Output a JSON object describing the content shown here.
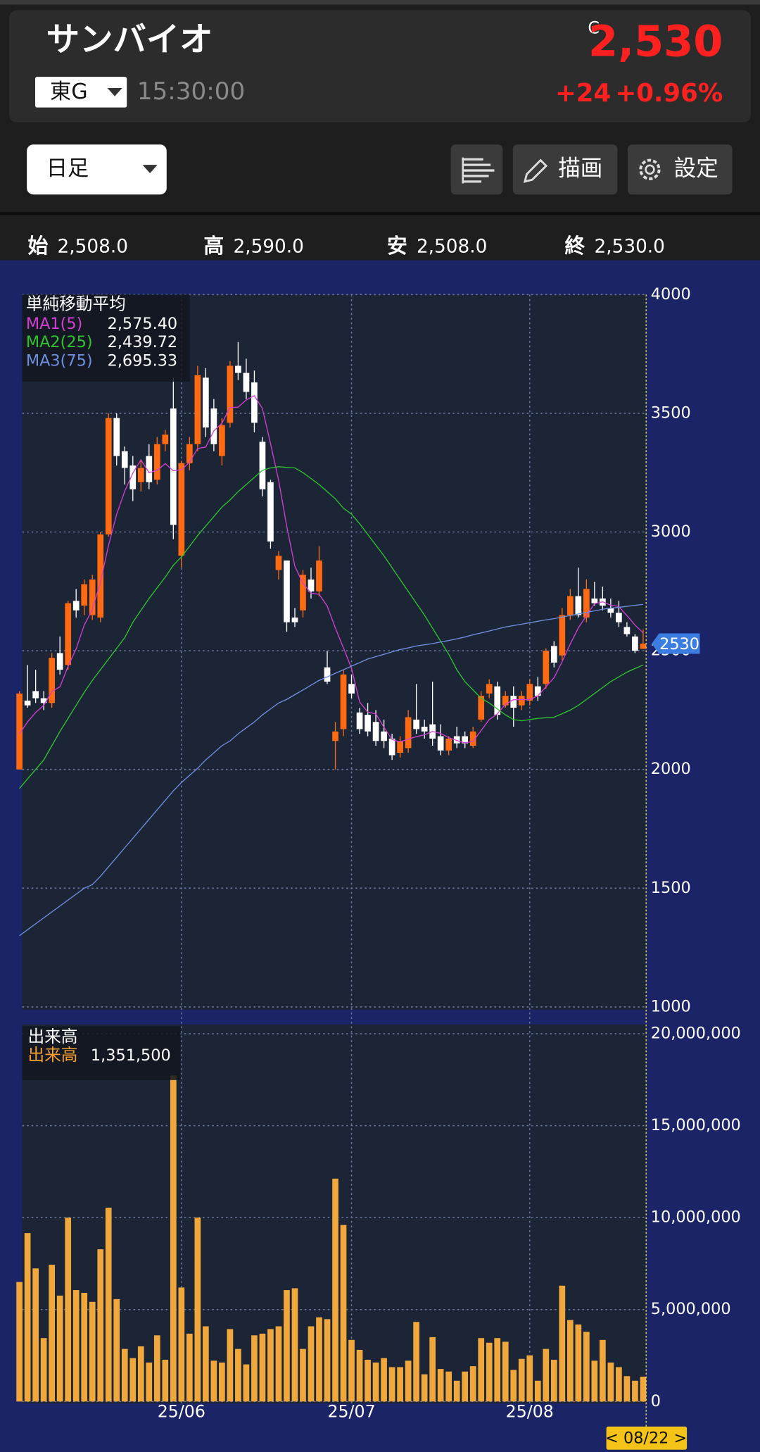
{
  "header": {
    "title": "サンバイオ",
    "market": "東G",
    "time": "15:30:00",
    "price_flag": "C",
    "price": "2,530",
    "change": "+24",
    "change_pct": "+0.96%"
  },
  "toolbar": {
    "period": "日足",
    "draw": "描画",
    "settings": "設定"
  },
  "ohlc": [
    {
      "label": "始",
      "value": "2,508.0"
    },
    {
      "label": "高",
      "value": "2,590.0"
    },
    {
      "label": "安",
      "value": "2,508.0"
    },
    {
      "label": "終",
      "value": "2,530.0"
    }
  ],
  "date_tag": "< 08/22 >",
  "chart_data": [
    {
      "type": "candlestick",
      "legend_title": "単純移動平均",
      "up_color": "#ff6a13",
      "down_color": "#ffffff",
      "ylim": [
        1000,
        4000
      ],
      "yticks": [
        4000,
        3500,
        3000,
        2500,
        2000,
        1500,
        1000
      ],
      "grid": true,
      "price_tag": 2530,
      "ohlc": {
        "open": [
          2000,
          2290,
          2330,
          2300,
          2280,
          2490,
          2440,
          2710,
          2690,
          2650,
          2640,
          2990,
          3480,
          3340,
          3280,
          3210,
          3320,
          3220,
          3370,
          3520,
          2900,
          3290,
          3370,
          3650,
          3520,
          3320,
          3460,
          3700,
          3670,
          3630,
          3380,
          3210,
          2840,
          2880,
          2640,
          2670,
          2800,
          2750,
          2430,
          2120,
          2170,
          2360,
          2240,
          2230,
          2200,
          2160,
          2130,
          2070,
          2090,
          2210,
          2180,
          2190,
          2140,
          2080,
          2140,
          2140,
          2100,
          2210,
          2320,
          2350,
          2270,
          2310,
          2270,
          2290,
          2350,
          2360,
          2520,
          2480,
          2650,
          2730,
          2640,
          2720,
          2720,
          2680,
          2660,
          2600,
          2560,
          2508
        ],
        "high": [
          2330,
          2440,
          2420,
          2330,
          2490,
          2560,
          2710,
          2760,
          2800,
          2820,
          3000,
          3500,
          3500,
          3360,
          3320,
          3300,
          3370,
          3400,
          3430,
          3650,
          3300,
          3400,
          3700,
          3690,
          3560,
          3480,
          3720,
          3800,
          3730,
          3680,
          3400,
          3220,
          2920,
          2880,
          2680,
          2840,
          2850,
          2940,
          2500,
          2200,
          2420,
          2400,
          2260,
          2280,
          2250,
          2210,
          2150,
          2140,
          2250,
          2360,
          2210,
          2370,
          2190,
          2140,
          2180,
          2160,
          2180,
          2330,
          2380,
          2370,
          2330,
          2350,
          2330,
          2380,
          2390,
          2510,
          2540,
          2680,
          2760,
          2850,
          2800,
          2790,
          2770,
          2720,
          2710,
          2620,
          2570,
          2590
        ],
        "low": [
          2000,
          2260,
          2280,
          2250,
          2260,
          2400,
          2420,
          2640,
          2650,
          2630,
          2620,
          2980,
          3280,
          3200,
          3130,
          3170,
          3180,
          3200,
          3340,
          2970,
          2850,
          3260,
          3340,
          3400,
          3340,
          3280,
          3440,
          3640,
          3560,
          3420,
          3150,
          2930,
          2800,
          2580,
          2600,
          2640,
          2720,
          2730,
          2360,
          2000,
          2140,
          2300,
          2150,
          2140,
          2100,
          2090,
          2040,
          2050,
          2070,
          2150,
          2130,
          2100,
          2060,
          2060,
          2090,
          2090,
          2090,
          2200,
          2300,
          2210,
          2260,
          2180,
          2250,
          2270,
          2290,
          2340,
          2430,
          2460,
          2630,
          2640,
          2620,
          2690,
          2670,
          2640,
          2600,
          2560,
          2490,
          2508
        ],
        "close": [
          2320,
          2270,
          2300,
          2280,
          2470,
          2420,
          2700,
          2670,
          2780,
          2800,
          2990,
          3480,
          3320,
          3270,
          3180,
          3270,
          3210,
          3370,
          3410,
          3030,
          3290,
          3370,
          3660,
          3440,
          3370,
          3450,
          3700,
          3670,
          3590,
          3460,
          3180,
          2960,
          2900,
          2620,
          2620,
          2820,
          2750,
          2880,
          2370,
          2160,
          2400,
          2320,
          2170,
          2160,
          2120,
          2120,
          2060,
          2120,
          2220,
          2170,
          2160,
          2130,
          2080,
          2130,
          2110,
          2110,
          2160,
          2310,
          2360,
          2230,
          2310,
          2260,
          2310,
          2360,
          2310,
          2500,
          2450,
          2650,
          2730,
          2650,
          2760,
          2700,
          2690,
          2660,
          2620,
          2570,
          2500,
          2530
        ]
      },
      "lines": [
        {
          "name": "MA1(5)",
          "color": "#d43fd4",
          "legend_value": "2,575.40",
          "values": [
            2150,
            2200,
            2240,
            2270,
            2328,
            2348,
            2434,
            2508,
            2608,
            2674,
            2788,
            2944,
            3074,
            3172,
            3248,
            3304,
            3250,
            3260,
            3288,
            3258,
            3262,
            3294,
            3352,
            3358,
            3426,
            3458,
            3524,
            3526,
            3556,
            3574,
            3520,
            3372,
            3218,
            3024,
            2856,
            2784,
            2742,
            2738,
            2688,
            2596,
            2512,
            2426,
            2284,
            2242,
            2234,
            2178,
            2126,
            2116,
            2128,
            2138,
            2146,
            2160,
            2152,
            2134,
            2122,
            2112,
            2118,
            2164,
            2210,
            2234,
            2274,
            2294,
            2294,
            2294,
            2310,
            2348,
            2386,
            2454,
            2528,
            2596,
            2648,
            2698,
            2706,
            2692,
            2686,
            2648,
            2608,
            2575.4
          ]
        },
        {
          "name": "MA2(25)",
          "color": "#2fc42f",
          "legend_value": "2,439.72",
          "values": [
            1920,
            1960,
            2000,
            2040,
            2100,
            2160,
            2215,
            2270,
            2325,
            2375,
            2420,
            2465,
            2510,
            2555,
            2620,
            2670,
            2720,
            2765,
            2810,
            2860,
            2895,
            2940,
            2985,
            3025,
            3065,
            3105,
            3135,
            3170,
            3200,
            3230,
            3260,
            3270,
            3275,
            3272,
            3270,
            3250,
            3225,
            3200,
            3170,
            3140,
            3100,
            3075,
            3035,
            2990,
            2945,
            2900,
            2850,
            2800,
            2750,
            2700,
            2650,
            2595,
            2540,
            2485,
            2420,
            2370,
            2335,
            2300,
            2280,
            2255,
            2230,
            2210,
            2205,
            2210,
            2215,
            2218,
            2220,
            2235,
            2250,
            2270,
            2295,
            2320,
            2345,
            2370,
            2390,
            2410,
            2425,
            2439.72
          ]
        },
        {
          "name": "MA3(75)",
          "color": "#6f8fe0",
          "legend_value": "2,695.33",
          "values": [
            1300,
            1325,
            1350,
            1375,
            1400,
            1425,
            1450,
            1475,
            1500,
            1515,
            1550,
            1590,
            1630,
            1670,
            1710,
            1750,
            1790,
            1830,
            1870,
            1910,
            1945,
            1975,
            2005,
            2040,
            2070,
            2100,
            2120,
            2150,
            2175,
            2200,
            2230,
            2255,
            2280,
            2295,
            2315,
            2335,
            2355,
            2375,
            2390,
            2405,
            2420,
            2435,
            2450,
            2465,
            2475,
            2485,
            2495,
            2505,
            2512,
            2520,
            2525,
            2530,
            2537,
            2543,
            2550,
            2558,
            2567,
            2575,
            2583,
            2592,
            2600,
            2606,
            2612,
            2618,
            2624,
            2630,
            2635,
            2642,
            2648,
            2655,
            2661,
            2668,
            2675,
            2679,
            2683,
            2687,
            2691,
            2695.33
          ]
        }
      ]
    },
    {
      "type": "bar",
      "legend_title": "出来高",
      "ylim": [
        0,
        20000000
      ],
      "yticks": [
        {
          "value": 20000000,
          "label": "20,000,000"
        },
        {
          "value": 15000000,
          "label": "15,000,000"
        },
        {
          "value": 10000000,
          "label": "10,000,000"
        },
        {
          "value": 5000000,
          "label": "5,000,000"
        },
        0
      ],
      "grid": true,
      "categories": [
        null,
        null,
        null,
        null,
        null,
        null,
        null,
        null,
        null,
        null,
        null,
        null,
        null,
        null,
        null,
        null,
        null,
        null,
        null,
        null,
        "25/06",
        null,
        null,
        null,
        null,
        null,
        null,
        null,
        null,
        null,
        null,
        null,
        null,
        null,
        null,
        null,
        null,
        null,
        null,
        null,
        null,
        "25/07",
        null,
        null,
        null,
        null,
        null,
        null,
        null,
        null,
        null,
        null,
        null,
        null,
        null,
        null,
        null,
        null,
        null,
        null,
        null,
        null,
        null,
        "25/08",
        null,
        null,
        null,
        null,
        null,
        null,
        null,
        null,
        null,
        null,
        null,
        null,
        null,
        null
      ],
      "series": [
        {
          "name": "出来高",
          "color": "#f0a83c",
          "legend_color": "#f5a030",
          "legend_value": "1,351,500",
          "values": [
            6500000,
            9160000,
            7240000,
            3450000,
            7440000,
            5760000,
            10000000,
            6060000,
            5910000,
            5420000,
            8280000,
            10540000,
            5570000,
            2860000,
            2360000,
            3000000,
            2120000,
            3600000,
            2270000,
            17730000,
            6200000,
            3690000,
            10000000,
            4090000,
            2220000,
            2120000,
            3940000,
            2860000,
            2020000,
            3600000,
            3690000,
            3940000,
            4090000,
            6060000,
            6160000,
            2860000,
            4090000,
            4580000,
            4480000,
            12120000,
            9600000,
            3350000,
            2810000,
            2270000,
            2120000,
            2360000,
            1870000,
            1870000,
            2220000,
            4330000,
            1480000,
            3500000,
            1770000,
            1630000,
            1130000,
            1630000,
            1920000,
            3450000,
            3200000,
            3450000,
            3250000,
            1720000,
            2320000,
            2510000,
            1130000,
            2860000,
            2270000,
            6300000,
            4430000,
            4190000,
            3790000,
            2220000,
            3350000,
            2120000,
            1870000,
            1380000,
            1130000,
            1351500
          ]
        }
      ]
    }
  ]
}
